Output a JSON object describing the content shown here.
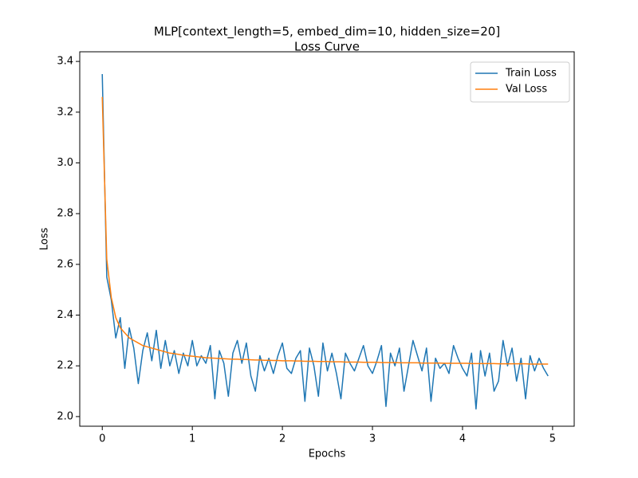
{
  "chart_data": {
    "type": "line",
    "title": "MLP[context_length=5, embed_dim=10, hidden_size=20]",
    "subtitle": "Loss Curve",
    "xlabel": "Epochs",
    "ylabel": "Loss",
    "x": [
      0,
      0.05,
      0.1,
      0.15,
      0.2,
      0.25,
      0.3,
      0.35,
      0.4,
      0.45,
      0.5,
      0.55,
      0.6,
      0.65,
      0.7,
      0.75,
      0.8,
      0.85,
      0.9,
      0.95,
      1,
      1.05,
      1.1,
      1.15,
      1.2,
      1.25,
      1.3,
      1.35,
      1.4,
      1.45,
      1.5,
      1.55,
      1.6,
      1.65,
      1.7,
      1.75,
      1.8,
      1.85,
      1.9,
      1.95,
      2,
      2.05,
      2.1,
      2.15,
      2.2,
      2.25,
      2.3,
      2.35,
      2.4,
      2.45,
      2.5,
      2.55,
      2.6,
      2.65,
      2.7,
      2.75,
      2.8,
      2.85,
      2.9,
      2.95,
      3,
      3.05,
      3.1,
      3.15,
      3.2,
      3.25,
      3.3,
      3.35,
      3.4,
      3.45,
      3.5,
      3.55,
      3.6,
      3.65,
      3.7,
      3.75,
      3.8,
      3.85,
      3.9,
      3.95,
      4,
      4.05,
      4.1,
      4.15,
      4.2,
      4.25,
      4.3,
      4.35,
      4.4,
      4.45,
      4.5,
      4.55,
      4.6,
      4.65,
      4.7,
      4.75,
      4.8,
      4.85,
      4.9,
      4.95
    ],
    "series": [
      {
        "name": "Train Loss",
        "color": "#1f77b4",
        "values": [
          3.35,
          2.55,
          2.46,
          2.31,
          2.39,
          2.19,
          2.35,
          2.27,
          2.13,
          2.26,
          2.33,
          2.22,
          2.34,
          2.19,
          2.3,
          2.2,
          2.26,
          2.17,
          2.25,
          2.2,
          2.3,
          2.2,
          2.24,
          2.21,
          2.28,
          2.07,
          2.26,
          2.21,
          2.08,
          2.25,
          2.3,
          2.21,
          2.29,
          2.16,
          2.1,
          2.24,
          2.18,
          2.23,
          2.17,
          2.24,
          2.29,
          2.19,
          2.17,
          2.23,
          2.26,
          2.06,
          2.27,
          2.2,
          2.08,
          2.29,
          2.18,
          2.25,
          2.17,
          2.07,
          2.25,
          2.21,
          2.18,
          2.23,
          2.28,
          2.2,
          2.17,
          2.22,
          2.28,
          2.04,
          2.25,
          2.2,
          2.27,
          2.1,
          2.2,
          2.3,
          2.24,
          2.18,
          2.27,
          2.06,
          2.23,
          2.19,
          2.21,
          2.17,
          2.28,
          2.23,
          2.19,
          2.16,
          2.25,
          2.03,
          2.26,
          2.16,
          2.25,
          2.1,
          2.14,
          2.3,
          2.2,
          2.27,
          2.14,
          2.23,
          2.07,
          2.24,
          2.18,
          2.23,
          2.19,
          2.16
        ]
      },
      {
        "name": "Val Loss",
        "color": "#ff7f0e",
        "values": [
          3.26,
          2.62,
          2.47,
          2.39,
          2.35,
          2.33,
          2.31,
          2.3,
          2.29,
          2.28,
          2.275,
          2.27,
          2.265,
          2.26,
          2.255,
          2.25,
          2.248,
          2.245,
          2.242,
          2.24,
          2.238,
          2.236,
          2.234,
          2.232,
          2.231,
          2.23,
          2.229,
          2.228,
          2.227,
          2.226,
          2.226,
          2.225,
          2.225,
          2.224,
          2.223,
          2.223,
          2.222,
          2.222,
          2.221,
          2.221,
          2.22,
          2.22,
          2.22,
          2.219,
          2.219,
          2.218,
          2.218,
          2.218,
          2.217,
          2.217,
          2.217,
          2.216,
          2.216,
          2.216,
          2.215,
          2.215,
          2.215,
          2.215,
          2.214,
          2.214,
          2.214,
          2.214,
          2.213,
          2.213,
          2.213,
          2.213,
          2.212,
          2.212,
          2.212,
          2.212,
          2.212,
          2.211,
          2.211,
          2.211,
          2.211,
          2.211,
          2.21,
          2.21,
          2.21,
          2.21,
          2.21,
          2.21,
          2.209,
          2.209,
          2.209,
          2.209,
          2.209,
          2.209,
          2.208,
          2.208,
          2.208,
          2.208,
          2.208,
          2.208,
          2.208,
          2.207,
          2.207,
          2.207,
          2.207,
          2.207
        ]
      }
    ],
    "xlim": [
      -0.25,
      5.24
    ],
    "ylim": [
      1.962,
      3.438
    ],
    "xticks": [
      0,
      1,
      2,
      3,
      4,
      5
    ],
    "yticks": [
      {
        "value": 2,
        "label": "2.0"
      },
      2.2,
      2.4,
      2.6,
      2.8,
      {
        "value": 3,
        "label": "3.0"
      },
      3.2,
      3.4
    ],
    "legend": "upper right",
    "grid": false
  }
}
